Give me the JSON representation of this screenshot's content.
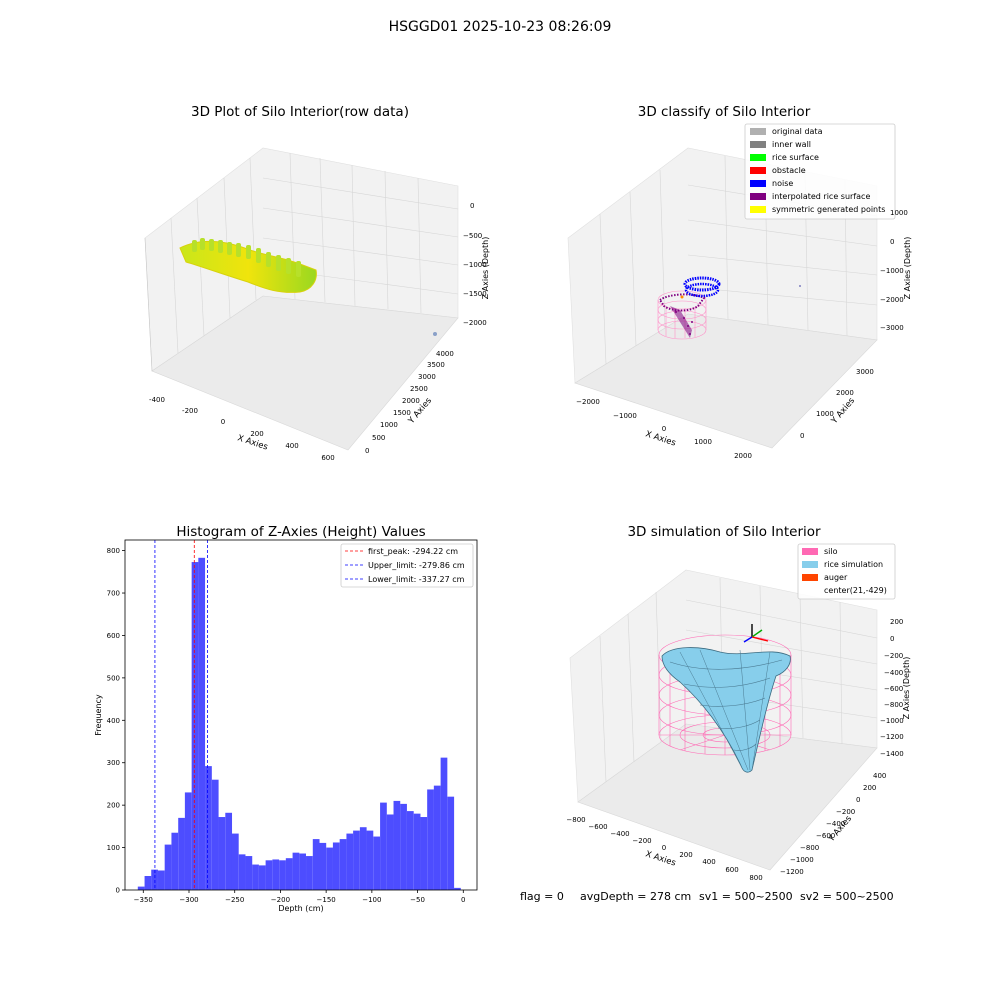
{
  "figure_title": "HSGGD01 2025-10-23 08:26:09",
  "status_line": {
    "flag": "flag = 0",
    "avg_depth": "avgDepth = 278 cm",
    "sv1": "sv1 = 500~2500",
    "sv2": "sv2 = 500~2500"
  },
  "colors": {
    "hist_bar": "#4d4dff",
    "first_peak_line": "#ff0000",
    "limit_line": "#0000ff",
    "silo": "#ff69b4",
    "rice_simulation": "#87ceeb",
    "auger": "#ff4500",
    "rice_surface_low": "#f2e60a",
    "rice_surface_high": "#7fd82a",
    "inner_wall": "#808080",
    "original_data": "#b0b0b0",
    "obstacle": "#ff0000",
    "noise": "#0000ff",
    "interpolated_rice_surface": "#800080",
    "symmetric_generated_points": "#ffff00"
  },
  "panels": {
    "raw": {
      "title": "3D Plot of Silo Interior(row data)",
      "x_label": "X Axies",
      "y_label": "Y Axies",
      "z_label": "Z Axies (Depth)",
      "x_ticks": [
        "-400",
        "-200",
        "0",
        "200",
        "400",
        "600"
      ],
      "y_ticks": [
        "0",
        "500",
        "1000",
        "1500",
        "2000",
        "2500",
        "3000",
        "3500",
        "4000"
      ],
      "z_ticks": [
        "0",
        "−500",
        "−1000",
        "−1500",
        "−2000"
      ]
    },
    "classify": {
      "title": "3D classify of Silo Interior",
      "x_label": "X Axies",
      "y_label": "Y Axies",
      "z_label": "Z Axies (Depth)",
      "x_ticks": [
        "−2000",
        "−1000",
        "0",
        "1000",
        "2000"
      ],
      "y_ticks": [
        "0",
        "1000",
        "2000",
        "3000"
      ],
      "z_ticks": [
        "1000",
        "0",
        "−1000",
        "−2000",
        "−3000"
      ],
      "legend": [
        {
          "label": "original data",
          "color": "#b0b0b0"
        },
        {
          "label": "inner wall",
          "color": "#808080"
        },
        {
          "label": "rice surface",
          "color": "#00ff00"
        },
        {
          "label": "obstacle",
          "color": "#ff0000"
        },
        {
          "label": "noise",
          "color": "#0000ff"
        },
        {
          "label": "interpolated rice surface",
          "color": "#800080"
        },
        {
          "label": "symmetric generated points",
          "color": "#ffff00"
        }
      ]
    },
    "simulation": {
      "title": "3D simulation of Silo Interior",
      "x_label": "X Axies",
      "y_label": "Y Axies",
      "z_label": "Z Axies (Depth)",
      "x_ticks": [
        "−800",
        "−600",
        "−400",
        "−200",
        "0",
        "200",
        "400",
        "600",
        "800"
      ],
      "y_ticks": [
        "400",
        "200",
        "0",
        "−200",
        "−400",
        "−600",
        "−800",
        "−1000",
        "−1200"
      ],
      "z_ticks": [
        "200",
        "0",
        "−200",
        "−400",
        "−600",
        "−800",
        "−1000",
        "−1200",
        "−1400"
      ],
      "legend": [
        {
          "label": "silo",
          "color": "#ff69b4"
        },
        {
          "label": "rice simulation",
          "color": "#87ceeb"
        },
        {
          "label": "auger",
          "color": "#ff4500"
        },
        {
          "label": "center(21,-429)",
          "color": ""
        }
      ]
    }
  },
  "chart_data": [
    {
      "type": "bar",
      "title": "Histogram of Z-Axies (Height) Values",
      "xlabel": "Depth (cm)",
      "ylabel": "Frequency",
      "xlim": [
        -370,
        15
      ],
      "ylim": [
        0,
        825
      ],
      "bin_width": 7.36,
      "x_ticks": [
        -350,
        -300,
        -250,
        -200,
        -150,
        -100,
        -50,
        0
      ],
      "x_tick_labels": [
        "−350",
        "−300",
        "−250",
        "−200",
        "−150",
        "−100",
        "−50",
        "0"
      ],
      "y_ticks": [
        0,
        100,
        200,
        300,
        400,
        500,
        600,
        700,
        800
      ],
      "bin_starts": [
        -356.0,
        -348.6,
        -341.3,
        -333.9,
        -326.6,
        -319.2,
        -311.8,
        -304.5,
        -297.1,
        -289.8,
        -282.4,
        -275.0,
        -267.7,
        -260.3,
        -253.0,
        -245.6,
        -238.2,
        -230.9,
        -223.5,
        -216.2,
        -208.8,
        -201.4,
        -194.1,
        -186.7,
        -179.4,
        -172.0,
        -164.6,
        -157.3,
        -149.9,
        -142.6,
        -135.2,
        -127.8,
        -120.5,
        -113.1,
        -105.8,
        -98.4,
        -91.0,
        -83.7,
        -76.3,
        -69.0,
        -61.6,
        -54.2,
        -46.9,
        -39.5,
        -32.2,
        -24.8,
        -17.4,
        -10.1
      ],
      "values": [
        8,
        33,
        48,
        46,
        107,
        135,
        170,
        230,
        773,
        783,
        292,
        260,
        172,
        182,
        133,
        84,
        80,
        60,
        58,
        70,
        72,
        70,
        75,
        88,
        86,
        80,
        120,
        111,
        100,
        112,
        120,
        133,
        140,
        148,
        140,
        126,
        206,
        178,
        210,
        203,
        186,
        180,
        172,
        237,
        246,
        312,
        220,
        5
      ],
      "reference_lines": [
        {
          "label": "first_peak: -294.22 cm",
          "x": -294.22,
          "color": "#ff0000"
        },
        {
          "label": "Upper_limit: -279.86 cm",
          "x": -279.86,
          "color": "#0000ff"
        },
        {
          "label": "Lower_limit: -337.27 cm",
          "x": -337.27,
          "color": "#0000ff"
        }
      ],
      "legend_position": "upper-right",
      "grid": false
    }
  ]
}
